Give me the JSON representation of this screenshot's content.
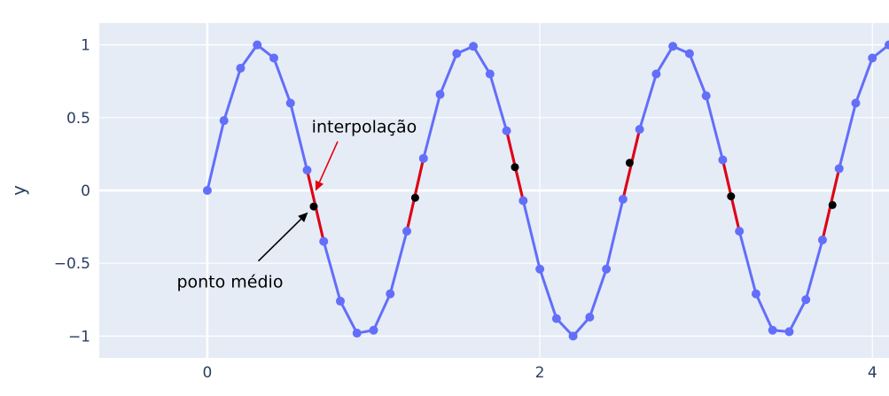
{
  "chart_data": {
    "type": "line",
    "title": "",
    "xlabel": "",
    "ylabel": "y",
    "xlim": [
      -0.65,
      4.1
    ],
    "ylim": [
      -1.15,
      1.15
    ],
    "xticks": [
      0,
      2,
      4
    ],
    "yticks": [
      -1,
      -0.5,
      0,
      0.5,
      1
    ],
    "ytick_labels": [
      "−1",
      "−0.5",
      "0",
      "0.5",
      "1"
    ],
    "grid": true,
    "colors": {
      "background": "#e5ecf6",
      "grid": "#ffffff",
      "line": "#636efa",
      "interpolation": "#e3000f",
      "midpoint": "#000000",
      "tick_text": "#2a3f5f"
    },
    "series": [
      {
        "x": [
          0.0,
          0.1,
          0.2,
          0.3,
          0.4,
          0.5,
          0.6,
          0.7,
          0.8,
          0.9,
          1.0,
          1.1,
          1.2,
          1.3,
          1.4,
          1.5,
          1.6,
          1.7,
          1.8,
          1.9,
          2.0,
          2.1,
          2.2,
          2.3,
          2.4,
          2.5,
          2.6,
          2.7,
          2.8,
          2.9,
          3.0,
          3.1,
          3.2,
          3.3,
          3.4,
          3.5,
          3.6,
          3.7,
          3.8,
          3.9,
          4.0,
          4.1
        ],
        "values": [
          0.0,
          0.48,
          0.84,
          1.0,
          0.91,
          0.6,
          0.14,
          -0.35,
          -0.76,
          -0.98,
          -0.96,
          -0.71,
          -0.28,
          0.22,
          0.66,
          0.94,
          0.99,
          0.8,
          0.41,
          -0.07,
          -0.54,
          -0.88,
          -1.0,
          -0.87,
          -0.54,
          -0.06,
          0.42,
          0.8,
          0.99,
          0.94,
          0.65,
          0.21,
          -0.28,
          -0.71,
          -0.96,
          -0.97,
          -0.75,
          -0.34,
          0.15,
          0.6,
          0.91,
          1.0
        ]
      },
      {
        "x": [
          0.64,
          1.25,
          1.85,
          2.54,
          3.15,
          3.76
        ],
        "values": [
          -0.11,
          -0.05,
          0.16,
          0.19,
          -0.04,
          -0.1
        ]
      }
    ],
    "interpolation_segments": [
      {
        "x": [
          0.6,
          0.7
        ],
        "y": [
          0.14,
          -0.35
        ]
      },
      {
        "x": [
          1.2,
          1.3
        ],
        "y": [
          -0.28,
          0.22
        ]
      },
      {
        "x": [
          1.8,
          1.9
        ],
        "y": [
          0.41,
          -0.07
        ]
      },
      {
        "x": [
          2.5,
          2.6
        ],
        "y": [
          -0.06,
          0.42
        ]
      },
      {
        "x": [
          3.1,
          3.2
        ],
        "y": [
          0.21,
          -0.28
        ]
      },
      {
        "x": [
          3.7,
          3.8
        ],
        "y": [
          -0.34,
          0.15
        ]
      }
    ],
    "annotations": [
      {
        "text": "interpolação",
        "x": 0.64,
        "y": -0.01,
        "arrow_color": "#e3000f"
      },
      {
        "text": "ponto médio",
        "x": 0.6,
        "y": -0.15,
        "arrow_color": "#000000"
      }
    ]
  }
}
